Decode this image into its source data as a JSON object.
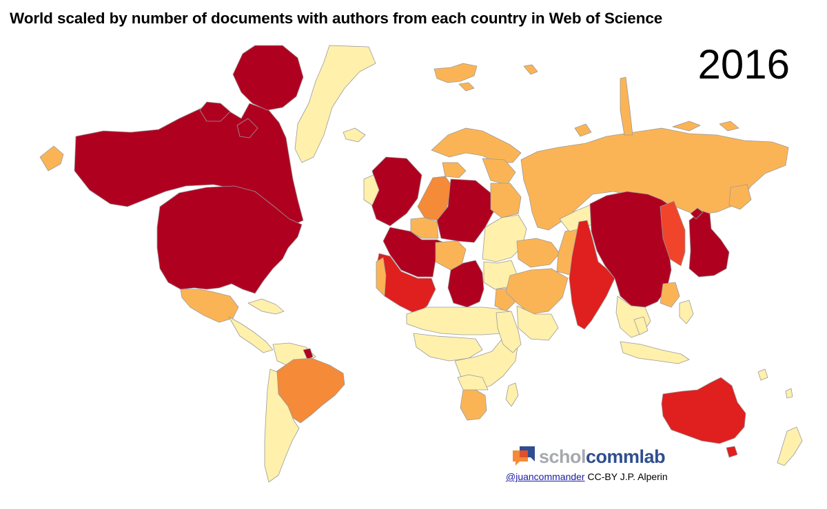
{
  "title": "World scaled by number of documents with authors from each country in Web of Science",
  "year": "2016",
  "colors": {
    "very_high": "#b00020",
    "high": "#e01f1f",
    "high_mid": "#f0452a",
    "mid": "#f58a38",
    "mid_low": "#fbb455",
    "low": "#fff0ac",
    "border": "#9a9a9a"
  },
  "branding": {
    "logo_part1": "schol",
    "logo_part2": "commlab",
    "handle": "@juancommander",
    "license": "CC-BY J.P. Alperin"
  }
}
